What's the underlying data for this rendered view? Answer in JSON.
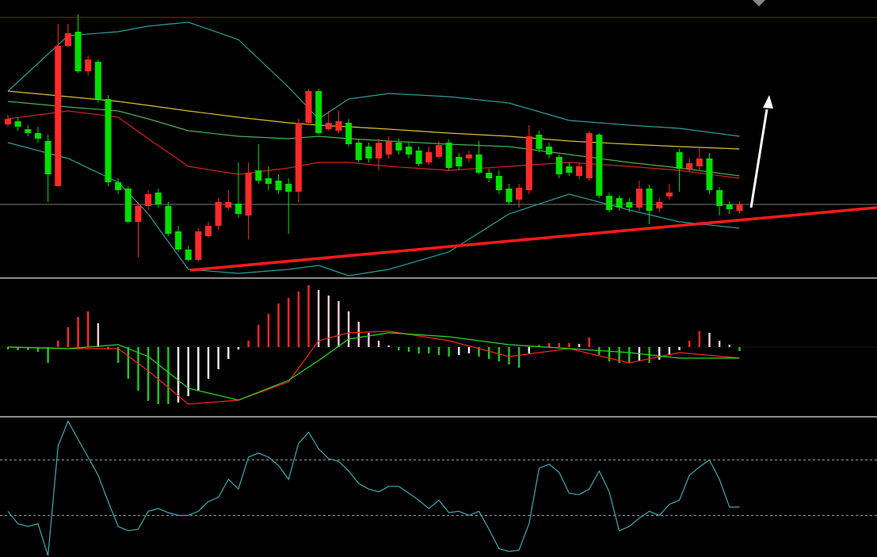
{
  "chart_data": [
    {
      "type": "candlestick",
      "open": [
        193,
        197,
        187,
        182,
        172,
        115,
        292,
        310,
        260,
        272,
        225,
        120,
        112,
        70,
        90,
        107,
        90,
        58,
        35,
        22,
        52,
        65,
        88,
        93,
        78,
        135,
        125,
        122,
        118,
        108,
        195,
        235,
        187,
        185,
        195,
        170,
        165,
        150,
        155,
        170,
        165,
        160,
        145,
        152,
        170,
        152,
        150,
        155,
        132,
        128,
        112,
        98,
        110,
        180,
        165,
        152,
        140,
        128,
        125,
        180,
        103,
        100,
        95,
        88,
        112,
        87,
        102,
        158,
        137,
        140,
        150,
        110,
        92,
        84
      ],
      "high": [
        205,
        202,
        192,
        190,
        180,
        320,
        320,
        332,
        280,
        275,
        230,
        125,
        115,
        95,
        110,
        112,
        95,
        65,
        40,
        62,
        70,
        100,
        110,
        145,
        145,
        168,
        140,
        130,
        125,
        200,
        238,
        238,
        210,
        210,
        200,
        175,
        170,
        175,
        178,
        175,
        170,
        165,
        165,
        172,
        174,
        157,
        160,
        172,
        137,
        135,
        118,
        118,
        192,
        185,
        170,
        155,
        145,
        145,
        185,
        182,
        107,
        103,
        100,
        122,
        117,
        100,
        118,
        162,
        150,
        163,
        157,
        114,
        96,
        96
      ],
      "low": [
        190,
        185,
        178,
        170,
        95,
        115,
        290,
        258,
        255,
        220,
        115,
        105,
        68,
        25,
        85,
        88,
        52,
        32,
        20,
        20,
        50,
        60,
        85,
        75,
        48,
        118,
        110,
        105,
        55,
        95,
        192,
        180,
        185,
        182,
        165,
        145,
        145,
        135,
        150,
        155,
        150,
        140,
        142,
        150,
        135,
        135,
        145,
        130,
        120,
        105,
        92,
        88,
        105,
        158,
        150,
        125,
        128,
        124,
        122,
        100,
        82,
        84,
        82,
        84,
        67,
        82,
        98,
        108,
        134,
        136,
        105,
        78,
        80,
        80
      ],
      "close": [
        200,
        190,
        182,
        175,
        130,
        292,
        308,
        260,
        275,
        225,
        120,
        110,
        70,
        90,
        105,
        92,
        55,
        35,
        22,
        58,
        65,
        95,
        95,
        80,
        132,
        122,
        118,
        110,
        108,
        195,
        235,
        182,
        195,
        197,
        168,
        148,
        150,
        170,
        172,
        160,
        155,
        143,
        158,
        167,
        138,
        140,
        155,
        132,
        125,
        110,
        95,
        113,
        178,
        162,
        155,
        130,
        132,
        140,
        182,
        103,
        85,
        88,
        88,
        112,
        84,
        95,
        107,
        137,
        144,
        150,
        110,
        90,
        86,
        92
      ],
      "up_color": "#ff2a2a",
      "down_color": "#00e000",
      "ylim": [
        0,
        350
      ],
      "overlay_x": [
        0,
        6,
        11,
        14,
        18,
        23,
        28,
        31,
        34,
        38,
        44,
        50,
        56,
        62,
        67,
        73
      ],
      "overlays": [
        {
          "color": "#2a9d9a",
          "values": [
            235,
            305,
            310,
            317,
            322,
            300,
            240,
            200,
            225,
            232,
            228,
            220,
            198,
            192,
            188,
            178
          ]
        },
        {
          "color": "#2a9d9a",
          "values": [
            170,
            150,
            120,
            80,
            10,
            5,
            10,
            15,
            2,
            10,
            32,
            80,
            105,
            85,
            70,
            62
          ]
        },
        {
          "color": "#d42020",
          "values": [
            200,
            210,
            202,
            175,
            140,
            130,
            138,
            145,
            145,
            140,
            135,
            140,
            145,
            140,
            135,
            125
          ]
        },
        {
          "color": "#4caf50",
          "values": [
            222,
            215,
            210,
            200,
            185,
            178,
            175,
            178,
            175,
            172,
            168,
            165,
            155,
            145,
            138,
            128
          ]
        },
        {
          "color": "#d8c030",
          "values": [
            235,
            228,
            222,
            217,
            210,
            202,
            195,
            192,
            190,
            187,
            182,
            178,
            172,
            168,
            165,
            162
          ]
        }
      ]
    },
    {
      "type": "macd",
      "values": [
        -3,
        -4,
        -4,
        -6,
        -20,
        8,
        25,
        38,
        45,
        30,
        -3,
        -20,
        -40,
        -55,
        -68,
        -72,
        -72,
        -70,
        -62,
        -55,
        -40,
        -28,
        -15,
        -3,
        8,
        28,
        42,
        55,
        62,
        70,
        78,
        72,
        65,
        58,
        45,
        32,
        18,
        8,
        2,
        -4,
        -6,
        -8,
        -8,
        -10,
        -12,
        -10,
        -8,
        -12,
        -15,
        -18,
        -22,
        -26,
        -8,
        3,
        5,
        5,
        5,
        4,
        12,
        -10,
        -18,
        -20,
        -20,
        -18,
        -20,
        -16,
        -10,
        -4,
        8,
        20,
        18,
        8,
        3,
        -5
      ],
      "up_color": "#ff2a2a",
      "down_color": "#22c822",
      "fade_up_color": "#ffd0d8",
      "fade_down_color": "#ffffff",
      "ylim": [
        -87,
        85
      ],
      "overlay_x": [
        0,
        6,
        11,
        14,
        18,
        23,
        28,
        31,
        34,
        38,
        44,
        50,
        56,
        62,
        67,
        73
      ],
      "overlays": [
        {
          "color": "#ff2020",
          "values": [
            0,
            -2,
            -2,
            -30,
            -72,
            -67,
            -44,
            8,
            18,
            20,
            8,
            -12,
            -2,
            -20,
            -7,
            -14
          ]
        },
        {
          "color": "#22dd22",
          "values": [
            0,
            -2,
            3,
            -12,
            -52,
            -67,
            -42,
            -17,
            10,
            18,
            13,
            3,
            -2,
            -7,
            -14,
            -14
          ]
        }
      ]
    },
    {
      "type": "line",
      "values": [
        33,
        24,
        22,
        24,
        1,
        80,
        98,
        85,
        72,
        59,
        40,
        22,
        19,
        20,
        33,
        35,
        32,
        30,
        30,
        33,
        40,
        43,
        56,
        49,
        72,
        75,
        72,
        66,
        56,
        82,
        90,
        78,
        71,
        69,
        62,
        53,
        49,
        47,
        51,
        51,
        46,
        41,
        35,
        41,
        32,
        33,
        30,
        33,
        20,
        6,
        4,
        5,
        24,
        64,
        67,
        61,
        46,
        45,
        49,
        62,
        47,
        19,
        22,
        28,
        33,
        30,
        38,
        41,
        59,
        65,
        70,
        56,
        36,
        36
      ],
      "color": "#3fa9b5",
      "ylim": [
        0,
        100
      ],
      "levels": [
        30,
        70
      ]
    }
  ]
}
